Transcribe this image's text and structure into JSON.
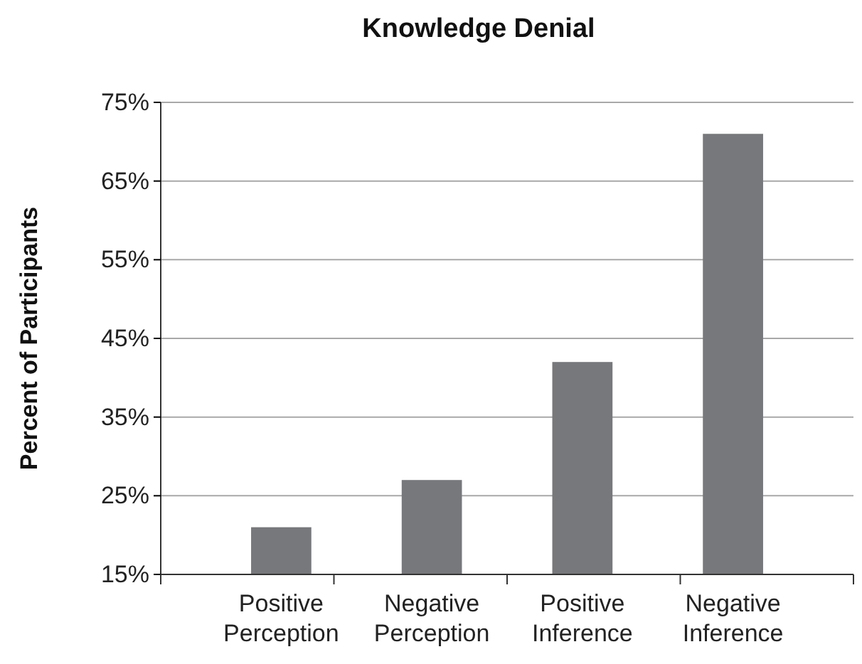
{
  "chart_data": {
    "type": "bar",
    "title": "Knowledge Denial",
    "ylabel": "Percent of Participants",
    "categories": [
      "Positive Perception",
      "Negative Perception",
      "Positive Inference",
      "Negative Inference"
    ],
    "values": [
      21,
      27,
      42,
      71
    ],
    "color": "#77787b",
    "ylim": [
      15,
      75
    ],
    "yticks": [
      {
        "value": 15,
        "label": "15%"
      },
      {
        "value": 25,
        "label": "25%"
      },
      {
        "value": 35,
        "label": "35%"
      },
      {
        "value": 45,
        "label": "45%"
      },
      {
        "value": 55,
        "label": "55%"
      },
      {
        "value": 65,
        "label": "65%"
      },
      {
        "value": 75,
        "label": "75%"
      }
    ],
    "grid": "y"
  }
}
